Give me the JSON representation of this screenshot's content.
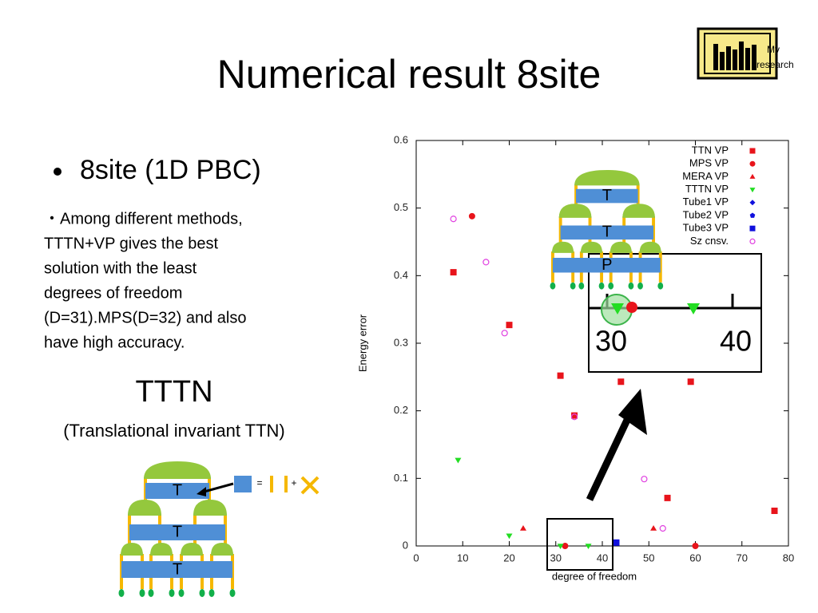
{
  "slide": {
    "title": "Numerical result 8site",
    "bullet": "8site (1D PBC)",
    "paragraph": [
      "・Among  different  methods,",
      "TTTN+VP gives the best",
      "solution with the least",
      "degrees of freedom",
      "(D=31).MPS(D=32) and also",
      "have high accuracy."
    ],
    "heading": "TTTN",
    "subheading": "(Translational invariant TTN)",
    "logo": [
      "My",
      "research"
    ],
    "tree_left": {
      "labels": [
        "T",
        "T",
        "T"
      ],
      "equals": "=",
      "plus": "+"
    },
    "tree_right": {
      "labels": [
        "T",
        "T",
        "P"
      ]
    },
    "inset": {
      "labels": [
        "30",
        "40"
      ]
    }
  },
  "chart_data": {
    "type": "scatter",
    "xlabel": "degree of freedom",
    "ylabel": "Energy error",
    "xlim": [
      0,
      80
    ],
    "xticks": [
      0,
      10,
      20,
      30,
      40,
      50,
      60,
      70,
      80
    ],
    "ylim": [
      0,
      0.6
    ],
    "yticks": [
      0,
      0.1,
      0.2,
      0.3,
      0.4,
      0.5,
      0.6
    ],
    "series": [
      {
        "name": "TTN VP",
        "color": "#e8141b",
        "marker": "square",
        "x": [
          8,
          20,
          31,
          34,
          44,
          59,
          54,
          77
        ],
        "values": [
          0.405,
          0.327,
          0.252,
          0.193,
          0.243,
          0.243,
          0.071,
          0.052
        ]
      },
      {
        "name": "MPS VP",
        "color": "#e8141b",
        "marker": "circle",
        "x": [
          12,
          32,
          60
        ],
        "values": [
          0.488,
          0,
          0
        ]
      },
      {
        "name": "MERA VP",
        "color": "#e8141b",
        "marker": "triangle-up",
        "x": [
          23,
          51
        ],
        "values": [
          0.026,
          0.026
        ]
      },
      {
        "name": "TTTN VP",
        "color": "#22dd22",
        "marker": "triangle-down",
        "x": [
          9,
          20,
          31,
          37
        ],
        "values": [
          0.127,
          0.015,
          0,
          0
        ]
      },
      {
        "name": "Tube1 VP",
        "color": "#1010dd",
        "marker": "diamond",
        "x": [],
        "values": []
      },
      {
        "name": "Tube2 VP",
        "color": "#1010dd",
        "marker": "pentagon",
        "x": [],
        "values": []
      },
      {
        "name": "Tube3 VP",
        "color": "#1010dd",
        "marker": "square",
        "x": [
          43
        ],
        "values": [
          0.005
        ]
      },
      {
        "name": "Sz cnsv.",
        "color": "#e040e0",
        "marker": "open-circle",
        "x": [
          8,
          15,
          19,
          34,
          49,
          53
        ],
        "values": [
          0.484,
          0.42,
          0.315,
          0.191,
          0.099,
          0.026
        ]
      }
    ]
  }
}
